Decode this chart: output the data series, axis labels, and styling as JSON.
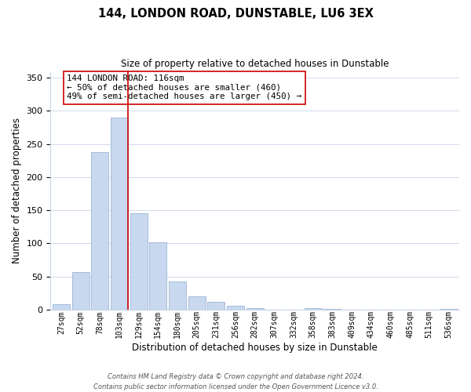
{
  "title": "144, LONDON ROAD, DUNSTABLE, LU6 3EX",
  "subtitle": "Size of property relative to detached houses in Dunstable",
  "xlabel": "Distribution of detached houses by size in Dunstable",
  "ylabel": "Number of detached properties",
  "bar_labels": [
    "27sqm",
    "52sqm",
    "78sqm",
    "103sqm",
    "129sqm",
    "154sqm",
    "180sqm",
    "205sqm",
    "231sqm",
    "256sqm",
    "282sqm",
    "307sqm",
    "332sqm",
    "358sqm",
    "383sqm",
    "409sqm",
    "434sqm",
    "460sqm",
    "485sqm",
    "511sqm",
    "536sqm"
  ],
  "bar_values": [
    8,
    57,
    238,
    290,
    145,
    101,
    42,
    20,
    12,
    6,
    2,
    0,
    0,
    2,
    1,
    0,
    0,
    0,
    0,
    0,
    1
  ],
  "bar_color": "#c8d9ef",
  "bar_edge_color": "#9bb5d6",
  "vline_x_index": 3,
  "vline_color": "#cc0000",
  "ylim": [
    0,
    360
  ],
  "yticks": [
    0,
    50,
    100,
    150,
    200,
    250,
    300,
    350
  ],
  "annotation_title": "144 LONDON ROAD: 116sqm",
  "annotation_line1": "← 50% of detached houses are smaller (460)",
  "annotation_line2": "49% of semi-detached houses are larger (450) →",
  "footer1": "Contains HM Land Registry data © Crown copyright and database right 2024.",
  "footer2": "Contains public sector information licensed under the Open Government Licence v3.0.",
  "background_color": "#ffffff",
  "grid_color": "#d0d8ec"
}
